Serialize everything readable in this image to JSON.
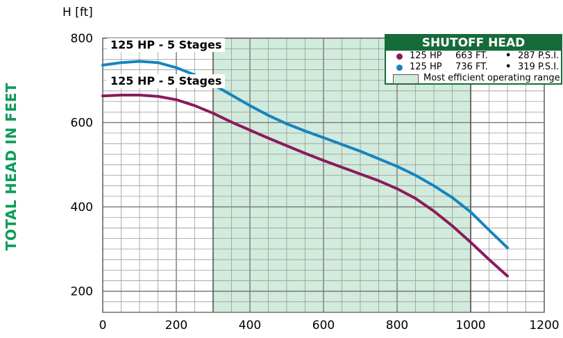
{
  "chart_data": {
    "type": "line",
    "title": "",
    "ylabel": "TOTAL HEAD IN FEET",
    "y_unit": "H [ft]",
    "xlabel": "",
    "xlim": [
      0,
      1200
    ],
    "ylim": [
      150,
      800
    ],
    "x_ticks": [
      "0",
      "200",
      "400",
      "600",
      "800",
      "1000",
      "1200"
    ],
    "y_ticks": [
      "200",
      "400",
      "600",
      "800"
    ],
    "grid": true,
    "legend_position": "top-right",
    "efficient_range": [
      300,
      1000
    ],
    "series": [
      {
        "name": "125 HP - 5 Stages",
        "color": "#1684bf",
        "x": [
          0,
          50,
          100,
          150,
          200,
          250,
          300,
          350,
          400,
          450,
          500,
          550,
          600,
          650,
          700,
          750,
          800,
          850,
          900,
          950,
          1000,
          1050,
          1100
        ],
        "y": [
          736,
          742,
          745,
          742,
          730,
          713,
          690,
          665,
          640,
          617,
          597,
          580,
          564,
          548,
          532,
          514,
          496,
          475,
          450,
          422,
          388,
          345,
          303
        ]
      },
      {
        "name": "125 HP - 5 Stages",
        "color": "#8b1a5c",
        "x": [
          0,
          50,
          100,
          150,
          200,
          250,
          300,
          350,
          400,
          450,
          500,
          550,
          600,
          650,
          700,
          750,
          800,
          850,
          900,
          950,
          1000,
          1050,
          1100
        ],
        "y": [
          663,
          665,
          665,
          662,
          654,
          640,
          622,
          601,
          582,
          563,
          545,
          527,
          510,
          494,
          478,
          462,
          443,
          420,
          390,
          355,
          316,
          275,
          236
        ]
      }
    ],
    "annotations": [
      {
        "text": "125 HP - 5 Stages",
        "series": 0
      },
      {
        "text": "125 HP - 5 Stages",
        "series": 1
      }
    ]
  },
  "legend": {
    "title": "SHUTOFF HEAD",
    "rows": [
      {
        "hp": "125 HP",
        "ft": "663 FT.",
        "bullet": "•",
        "psi": "287 P.S.I.",
        "color": "#8b1a5c"
      },
      {
        "hp": "125 HP",
        "ft": "736 FT.",
        "bullet": "•",
        "psi": "319 P.S.I.",
        "color": "#1684bf"
      }
    ],
    "range_text": "Most efficient operating range",
    "range_color": "#d1ebdc"
  }
}
